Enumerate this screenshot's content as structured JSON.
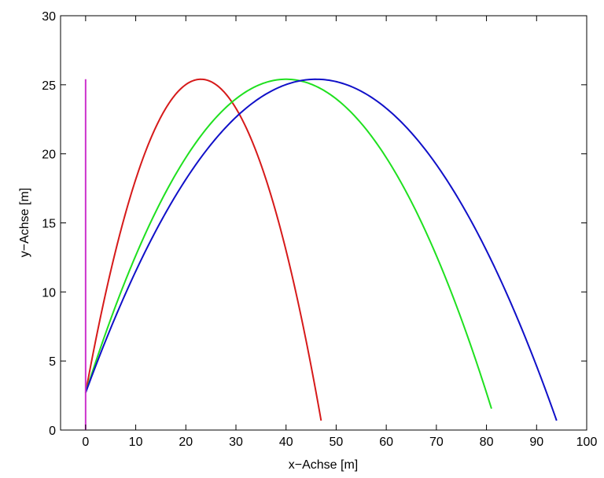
{
  "chart_data": {
    "type": "line",
    "title": "",
    "xlabel": "x−Achse [m]",
    "ylabel": "y−Achse [m]",
    "xlim": [
      -5,
      100
    ],
    "ylim": [
      0,
      30
    ],
    "xticks": [
      0,
      10,
      20,
      30,
      40,
      50,
      60,
      70,
      80,
      90,
      100
    ],
    "yticks": [
      0,
      5,
      10,
      15,
      20,
      25,
      30
    ],
    "grid": false,
    "legend": "none",
    "series": [
      {
        "color": "#d61a1a",
        "kind": "parabola",
        "start": [
          0,
          2.7
        ],
        "apex": [
          23,
          25.4
        ],
        "end_x": 47
      },
      {
        "color": "#1fe01f",
        "kind": "parabola",
        "start": [
          0,
          2.7
        ],
        "apex": [
          40,
          25.4
        ],
        "end_x": 81
      },
      {
        "color": "#1010c8",
        "kind": "parabola",
        "start": [
          0,
          2.7
        ],
        "apex": [
          46,
          25.4
        ],
        "end_x": 94
      },
      {
        "color": "#cc33cc",
        "kind": "vertical",
        "x": 0,
        "y": [
          0,
          25.4
        ]
      }
    ]
  }
}
